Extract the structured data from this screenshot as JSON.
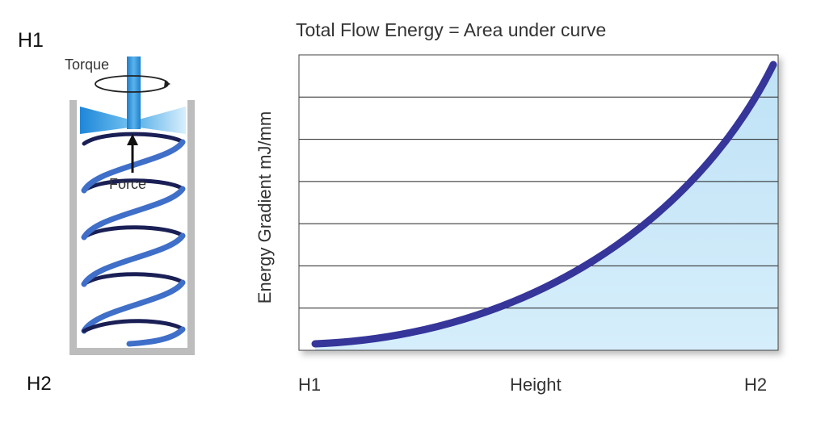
{
  "apparatus": {
    "top_label": "H1",
    "bottom_label": "H2",
    "torque_label": "Torque",
    "force_label": "Force"
  },
  "colors": {
    "curve": "#35359a",
    "area_fill": "#c9e7f7",
    "blade": "#2a8fd6",
    "helix": "#3d6cc4",
    "vessel": "#bdbdbd",
    "gridline": "#222222"
  },
  "chart_data": {
    "type": "area",
    "title": "Total Flow Energy = Area under curve",
    "xlabel": "Height",
    "ylabel": "Energy Gradient mJ/mm",
    "x_tick_labels": [
      "H1",
      "H2"
    ],
    "y_gridlines": 7,
    "grid": true,
    "curve_shape": "increasing, convex (exponential-like) from H1 to H2"
  }
}
